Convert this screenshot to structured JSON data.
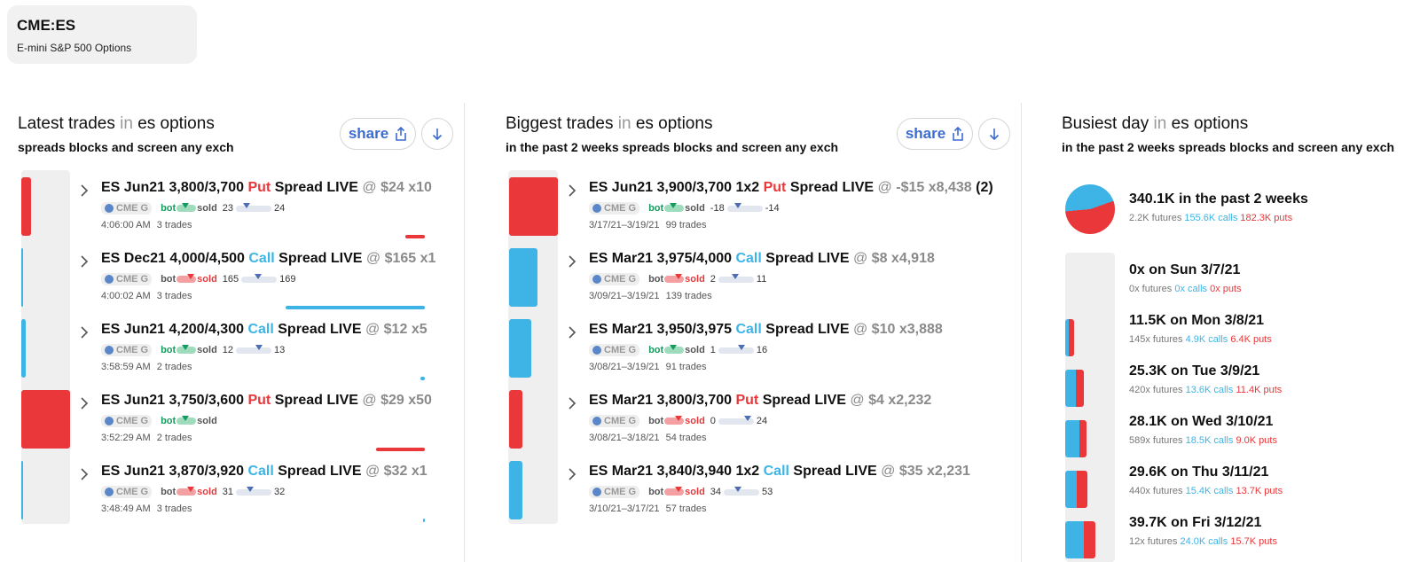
{
  "ticker": {
    "symbol": "CME:ES",
    "description": "E-mini S&P 500 Options"
  },
  "colors": {
    "put": "#e9373a",
    "call": "#3eb4e6",
    "bot": "#179a5e",
    "link": "#3d6cd1"
  },
  "latest": {
    "title_main": "Latest trades",
    "title_in": "in",
    "title_target": "es options",
    "subtitle": "spreads blocks and screen any exch",
    "share_label": "share",
    "trades": [
      {
        "prefix": "ES Jun21 3,800/3,700",
        "side": "Put",
        "suffix": "Spread LIVE",
        "at": "@",
        "price": "$24",
        "qty": "x10",
        "exch": "CME G",
        "bot": "bot",
        "sold": "sold",
        "low": "23",
        "high": "24",
        "time": "4:06:00 AM",
        "count": "3 trades"
      },
      {
        "prefix": "ES Dec21 4,000/4,500",
        "side": "Call",
        "suffix": "Spread LIVE",
        "at": "@",
        "price": "$165",
        "qty": "x1",
        "exch": "CME G",
        "bot": "bot",
        "sold": "sold",
        "low": "165",
        "high": "169",
        "time": "4:00:02 AM",
        "count": "3 trades"
      },
      {
        "prefix": "ES Jun21 4,200/4,300",
        "side": "Call",
        "suffix": "Spread LIVE",
        "at": "@",
        "price": "$12",
        "qty": "x5",
        "exch": "CME G",
        "bot": "bot",
        "sold": "sold",
        "low": "12",
        "high": "13",
        "time": "3:58:59 AM",
        "count": "2 trades"
      },
      {
        "prefix": "ES Jun21 3,750/3,600",
        "side": "Put",
        "suffix": "Spread LIVE",
        "at": "@",
        "price": "$29",
        "qty": "x50",
        "exch": "CME G",
        "bot": "bot",
        "sold": "sold",
        "low": "",
        "high": "",
        "time": "3:52:29 AM",
        "count": "2 trades"
      },
      {
        "prefix": "ES Jun21 3,870/3,920",
        "side": "Call",
        "suffix": "Spread LIVE",
        "at": "@",
        "price": "$32",
        "qty": "x1",
        "exch": "CME G",
        "bot": "bot",
        "sold": "sold",
        "low": "31",
        "high": "32",
        "time": "3:48:49 AM",
        "count": "3 trades"
      }
    ]
  },
  "biggest": {
    "title_main": "Biggest trades",
    "title_in": "in",
    "title_target": "es options",
    "subtitle": "in the past 2 weeks spreads blocks and screen any exch",
    "share_label": "share",
    "trades": [
      {
        "prefix": "ES Jun21 3,900/3,700 1x2",
        "side": "Put",
        "suffix": "Spread LIVE",
        "at": "@",
        "price": "-$15",
        "qty": "x8,438",
        "extra": "(2)",
        "exch": "CME G",
        "bot": "bot",
        "sold": "sold",
        "low": "-18",
        "high": "-14",
        "time": "3/17/21–3/19/21",
        "count": "99 trades"
      },
      {
        "prefix": "ES Mar21 3,975/4,000",
        "side": "Call",
        "suffix": "Spread LIVE",
        "at": "@",
        "price": "$8",
        "qty": "x4,918",
        "extra": "",
        "exch": "CME G",
        "bot": "bot",
        "sold": "sold",
        "low": "2",
        "high": "11",
        "time": "3/09/21–3/19/21",
        "count": "139 trades"
      },
      {
        "prefix": "ES Mar21 3,950/3,975",
        "side": "Call",
        "suffix": "Spread LIVE",
        "at": "@",
        "price": "$10",
        "qty": "x3,888",
        "extra": "",
        "exch": "CME G",
        "bot": "bot",
        "sold": "sold",
        "low": "1",
        "high": "16",
        "time": "3/08/21–3/19/21",
        "count": "91 trades"
      },
      {
        "prefix": "ES Mar21 3,800/3,700",
        "side": "Put",
        "suffix": "Spread LIVE",
        "at": "@",
        "price": "$4",
        "qty": "x2,232",
        "extra": "",
        "exch": "CME G",
        "bot": "bot",
        "sold": "sold",
        "low": "0",
        "high": "24",
        "time": "3/08/21–3/18/21",
        "count": "54 trades"
      },
      {
        "prefix": "ES Mar21 3,840/3,940 1x2",
        "side": "Call",
        "suffix": "Spread LIVE",
        "at": "@",
        "price": "$35",
        "qty": "x2,231",
        "extra": "",
        "exch": "CME G",
        "bot": "bot",
        "sold": "sold",
        "low": "34",
        "high": "53",
        "time": "3/10/21–3/17/21",
        "count": "57 trades"
      }
    ]
  },
  "busiest": {
    "title_main": "Busiest day",
    "title_in": "in",
    "title_target": "es options",
    "subtitle": "in the past 2 weeks spreads blocks and screen any exch",
    "summary": {
      "headline": "340.1K in the past 2 weeks",
      "futures": "2.2K futures",
      "calls": "155.6K calls",
      "puts": "182.3K puts",
      "calls_share": 0.46
    },
    "days": [
      {
        "headline": "0x on Sun 3/7/21",
        "futures": "0x futures",
        "calls": "0x calls",
        "puts": "0x puts",
        "calls_k": 0,
        "puts_k": 0
      },
      {
        "headline": "11.5K on Mon 3/8/21",
        "futures": "145x futures",
        "calls": "4.9K calls",
        "puts": "6.4K puts",
        "calls_k": 4.9,
        "puts_k": 6.4
      },
      {
        "headline": "25.3K on Tue 3/9/21",
        "futures": "420x futures",
        "calls": "13.6K calls",
        "puts": "11.4K puts",
        "calls_k": 13.6,
        "puts_k": 11.4
      },
      {
        "headline": "28.1K on Wed 3/10/21",
        "futures": "589x futures",
        "calls": "18.5K calls",
        "puts": "9.0K puts",
        "calls_k": 18.5,
        "puts_k": 9.0
      },
      {
        "headline": "29.6K on Thu 3/11/21",
        "futures": "440x futures",
        "calls": "15.4K calls",
        "puts": "13.7K puts",
        "calls_k": 15.4,
        "puts_k": 13.7
      },
      {
        "headline": "39.7K on Fri 3/12/21",
        "futures": "12x futures",
        "calls": "24.0K calls",
        "puts": "15.7K puts",
        "calls_k": 24.0,
        "puts_k": 15.7
      }
    ]
  }
}
